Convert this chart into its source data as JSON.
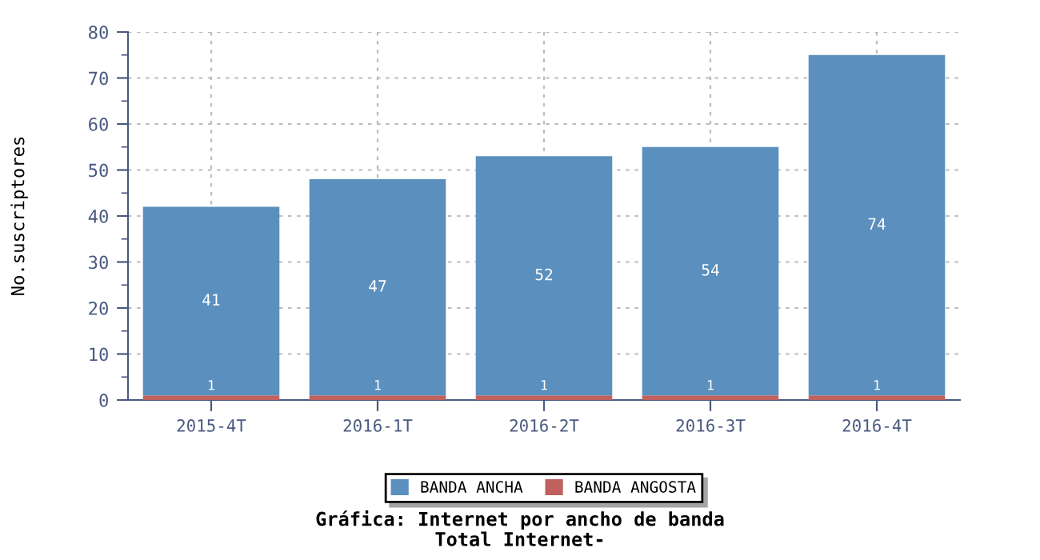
{
  "chart_data": {
    "type": "bar",
    "title": "Gráfica: Internet por ancho de banda",
    "subtitle": "Total Internet-",
    "ylabel": "No.suscriptores",
    "categories": [
      "2015-4T",
      "2016-1T",
      "2016-2T",
      "2016-3T",
      "2016-4T"
    ],
    "stacked": true,
    "series": [
      {
        "name": "BANDA ANGOSTA",
        "color": "#c0605f",
        "values": [
          1,
          1,
          1,
          1,
          1
        ]
      },
      {
        "name": "BANDA ANCHA",
        "color": "#5b8fbe",
        "values": [
          41,
          47,
          52,
          54,
          74
        ]
      }
    ],
    "ylim": [
      0,
      80
    ],
    "yticks": [
      0,
      10,
      20,
      30,
      40,
      50,
      60,
      70,
      80
    ],
    "grid": true,
    "legend": "bottom",
    "data_labels": true
  }
}
